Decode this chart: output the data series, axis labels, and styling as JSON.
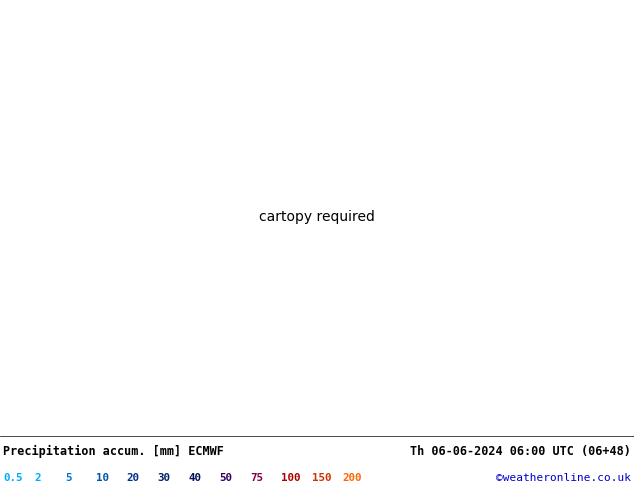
{
  "title_left": "Precipitation accum. [mm] ECMWF",
  "title_right": "Th 06-06-2024 06:00 UTC (06+48)",
  "credit": "©weatheronline.co.uk",
  "legend_values": [
    "0.5",
    "2",
    "5",
    "10",
    "20",
    "30",
    "40",
    "50",
    "75",
    "100",
    "150",
    "200"
  ],
  "legend_text_colors": [
    "#00aaff",
    "#00aaff",
    "#0077cc",
    "#0055aa",
    "#003388",
    "#002266",
    "#001155",
    "#330066",
    "#880044",
    "#aa0000",
    "#cc3300",
    "#ff6600"
  ],
  "precip_levels": [
    0,
    0.5,
    2,
    5,
    10,
    20,
    30,
    40,
    50,
    75,
    100,
    150,
    200,
    999
  ],
  "precip_colors": [
    "#ddeeff",
    "#aaddff",
    "#77ccff",
    "#44bbff",
    "#22aaff",
    "#0099ff",
    "#0066dd",
    "#0033bb",
    "#000099",
    "#440088",
    "#880044",
    "#cc0000",
    "#ff6600"
  ],
  "land_color": "#e8e0c8",
  "sea_color": "#d0e8f0",
  "dry_land_color": "#f0ece0",
  "green_land_color": "#c8e8b0",
  "figsize": [
    6.34,
    4.9
  ],
  "dpi": 100,
  "extent": [
    -58,
    48,
    24,
    74
  ],
  "map_bg": "#cce0e8"
}
